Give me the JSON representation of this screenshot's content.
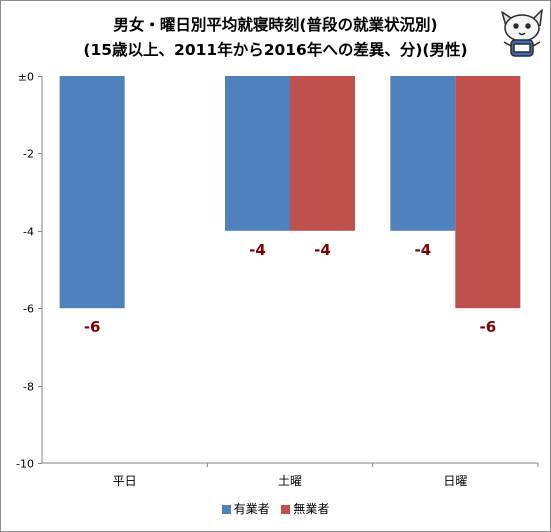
{
  "title_line1": "男女・曜日別平均就寝時刻(普段の就業状況別)",
  "title_line2": "(15歳以上、2011年から2016年への差異、分)(男性)",
  "colors": {
    "series1": "#4f81bd",
    "series2": "#c0504d",
    "data_label": "#7f0000"
  },
  "chart_data": {
    "type": "bar",
    "categories": [
      "平日",
      "土曜",
      "日曜"
    ],
    "series": [
      {
        "name": "有業者",
        "values": [
          -6,
          -4,
          -4
        ]
      },
      {
        "name": "無業者",
        "values": [
          0,
          -4,
          -6
        ]
      }
    ],
    "data_labels": [
      [
        "-6",
        "-4",
        "-4"
      ],
      [
        "",
        "-4",
        "-6"
      ]
    ],
    "ylim": [
      -10,
      0
    ],
    "y_ticks": [
      "±0",
      "-2",
      "-4",
      "-6",
      "-8",
      "-10"
    ],
    "y_tick_values": [
      0,
      -2,
      -4,
      -6,
      -8,
      -10
    ],
    "legend_position": "bottom",
    "grid": false
  }
}
